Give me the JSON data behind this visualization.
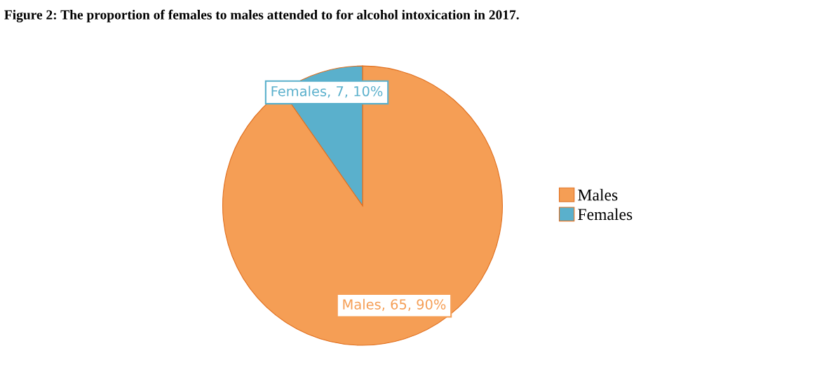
{
  "chart_data": {
    "type": "pie",
    "title": "Figure 2: The proportion of females to males attended to for alcohol intoxication in 2017.",
    "categories": [
      "Males",
      "Females"
    ],
    "values": [
      65,
      7
    ],
    "colors": [
      "#f59e55",
      "#5ab0cc"
    ],
    "value_labels": [
      "Males, 65, 90%",
      "Females, 7, 10%"
    ],
    "legend": "right"
  }
}
